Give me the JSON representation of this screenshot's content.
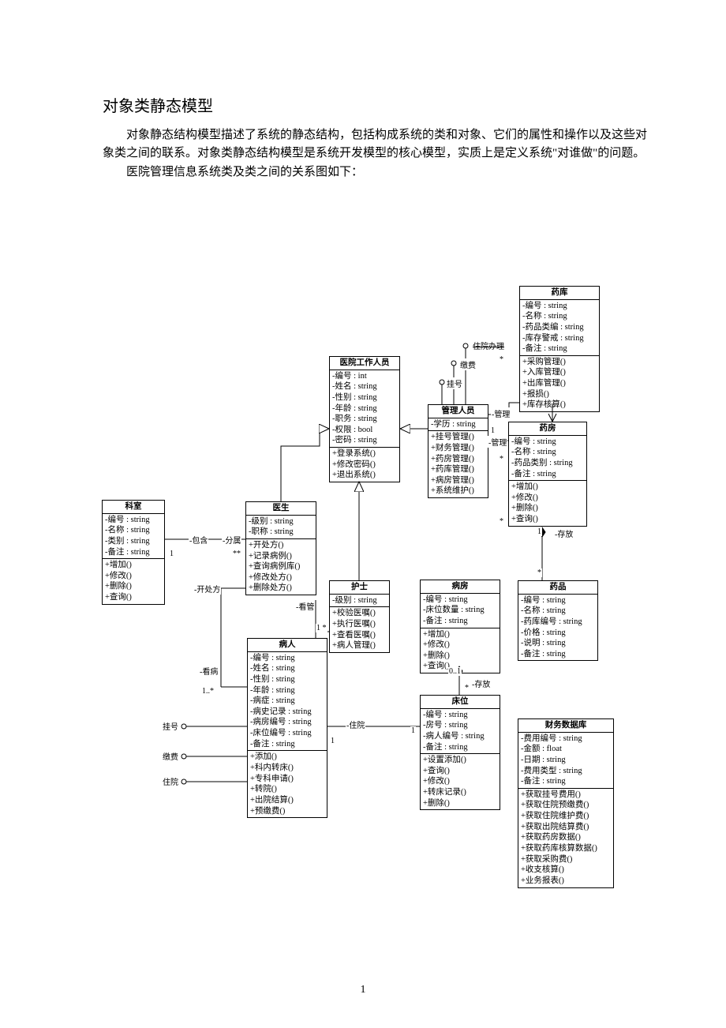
{
  "title": "对象类静态模型",
  "paragraph": "对象静态结构模型描述了系统的静态结构，包括构成系统的类和对象、它们的属性和操作以及这些对象类之间的联系。对象类静态结构模型是系统开发模型的核心模型，实质上是定义系统\"对谁做\"的问题。\n　　医院管理信息系统类及类之间的关系图如下：",
  "pageNumber": "1",
  "labels": {
    "hospitalize": "住院办理",
    "pay": "缴费",
    "register": "挂号",
    "manage": "-管理",
    "mgr2": "-管理",
    "include": "-包含",
    "belong": "-分属",
    "prescribe": "-开处方",
    "nurse": "-看管",
    "seePatient": "-看病",
    "store1": "-存放",
    "store2": "-存放",
    "stayIn": "-住院",
    "gh": "挂号",
    "jf": "缴费",
    "zy": "住院",
    "m1": "1",
    "mStar": "**",
    "m1b": "1",
    "m1c": "1",
    "m1d": "1",
    "m1e": "1",
    "m1f": "1 *",
    "m1g": "1..*",
    "m01": "0..1",
    "mst": "*",
    "mst2": "*",
    "mst3": "*",
    "mst4": "*",
    "mst5": "*"
  },
  "classes": {
    "yaoku": {
      "name": "药库",
      "attrs": [
        "-编号 : string",
        "-名称 : string",
        "-药品类编 : string",
        "-库存警戒 : string",
        "-备注 : string"
      ],
      "ops": [
        "+采购管理()",
        "+入库管理()",
        "+出库管理()",
        "+报损()",
        "+库存核算()"
      ]
    },
    "yiyuangzry": {
      "name": "医院工作人员",
      "attrs": [
        "-编号 : int",
        "-姓名 : string",
        "-性别 : string",
        "-年龄 : string",
        "-职务 : string",
        "-权限 : bool",
        "-密码 : string"
      ],
      "ops": [
        "+登录系统()",
        "+修改密码()",
        "+退出系统()"
      ]
    },
    "guanliry": {
      "name": "管理人员",
      "attrs": [
        "-学历 : string"
      ],
      "ops": [
        "+挂号管理()",
        "+财务管理()",
        "+药房管理()",
        "+药库管理()",
        "+病房管理()",
        "+系统维护()"
      ]
    },
    "yaofang": {
      "name": "药房",
      "attrs": [
        "-编号 : string",
        "-名称 : string",
        "-药品类别 : string",
        "-备注 : string"
      ],
      "ops": [
        "+增加()",
        "+修改()",
        "+删除()",
        "+查询()"
      ]
    },
    "keshi": {
      "name": "科室",
      "attrs": [
        "-编号 : string",
        "-名称 : string",
        "-类别 : string",
        "-备注 : string"
      ],
      "ops": [
        "+增加()",
        "+修改()",
        "+删除()",
        "+查询()"
      ]
    },
    "yisheng": {
      "name": "医生",
      "attrs": [
        "-级别 : string",
        "-职称 : string"
      ],
      "ops": [
        "+开处方()",
        "+记录病例()",
        "+查询病例库()",
        "+修改处方()",
        "+删除处方()"
      ]
    },
    "hushi": {
      "name": "护士",
      "attrs": [
        "-级别 : string"
      ],
      "ops": [
        "+校验医嘱()",
        "+执行医嘱()",
        "+查看医嘱()",
        "+病人管理()"
      ]
    },
    "bingfang": {
      "name": "病房",
      "attrs": [
        "-编号 : string",
        "-床位数量 : string",
        "-备注 : string"
      ],
      "ops": [
        "+增加()",
        "+修改()",
        "+删除()",
        "+查询()"
      ]
    },
    "yaopin": {
      "name": "药品",
      "attrs": [
        "-编号 : string",
        "-名称 : string",
        "-药库编号 : string",
        "-价格 : string",
        "-说明 : string",
        "-备注 : string"
      ],
      "ops": []
    },
    "bingren": {
      "name": "病人",
      "attrs": [
        "-编号 : string",
        "-姓名 : string",
        "-性别 : string",
        "-年龄 : string",
        "-病症 : string",
        "-病史记录 : string",
        "-病房编号 : string",
        "-床位编号 : string",
        "-备注 : string"
      ],
      "ops": [
        "+添加()",
        "+科内转床()",
        "+专科申请()",
        "+转院()",
        "+出院结算()",
        "+预缴费()"
      ]
    },
    "chuangwei": {
      "name": "床位",
      "attrs": [
        "-编号 : string",
        "-房号 : string",
        "-病人编号 : string",
        "-备注 : string"
      ],
      "ops": [
        "+设置添加()",
        "+查询()",
        "+修改()",
        "+转床记录()",
        "+删除()"
      ]
    },
    "caiwu": {
      "name": "财务数据库",
      "attrs": [
        "-费用编号 : string",
        "-金额 : float",
        "-日期 : string",
        "-费用类型 : string",
        "-备注 : string"
      ],
      "ops": [
        "+获取挂号费用()",
        "+获取住院预缴费()",
        "+获取住院维护费()",
        "+获取出院结算费()",
        "+获取药房数据()",
        "+获取药库核算数据()",
        "+获取采购费()",
        "+收支核算()",
        "+业务报表()"
      ]
    }
  }
}
